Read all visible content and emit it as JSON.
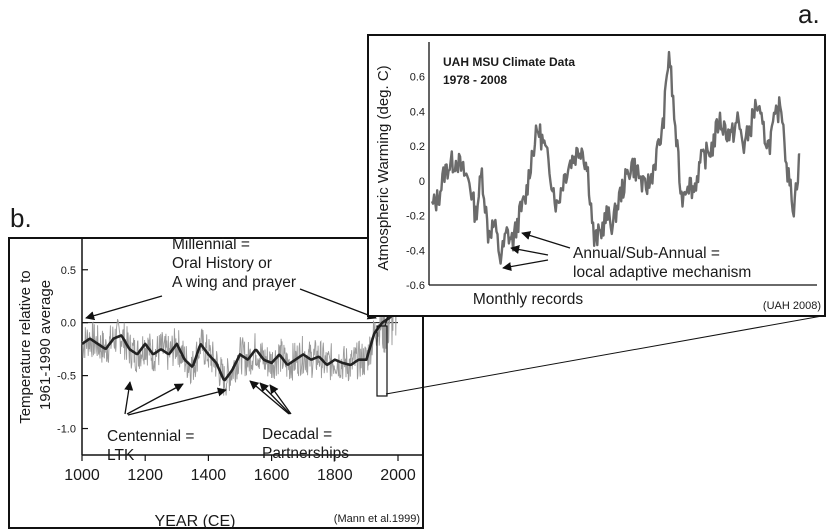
{
  "panel_a_letter": "a.",
  "panel_b_letter": "b.",
  "chart_data": [
    {
      "panel": "a",
      "type": "line",
      "title": "UAH MSU Climate Data",
      "subtitle": "1978 - 2008",
      "xlabel": "Monthly records",
      "ylabel": "Atmospheric Warming (deg. C)",
      "ylim": [
        -0.6,
        0.8
      ],
      "yticks": [
        "0.6",
        "0.4",
        "0.2",
        "0",
        "-0.2",
        "-0.4",
        "-0.6"
      ],
      "ytick_values": [
        0.6,
        0.4,
        0.2,
        0,
        -0.2,
        -0.4,
        -0.6
      ],
      "x": [
        1979.0,
        1979.5,
        1980.0,
        1980.5,
        1981.0,
        1981.5,
        1982.0,
        1982.5,
        1983.0,
        1983.5,
        1984.0,
        1984.5,
        1985.0,
        1985.5,
        1986.0,
        1986.5,
        1987.0,
        1987.5,
        1988.0,
        1988.5,
        1989.0,
        1989.5,
        1990.0,
        1990.5,
        1991.0,
        1991.5,
        1992.0,
        1992.5,
        1993.0,
        1993.5,
        1994.0,
        1994.5,
        1995.0,
        1995.5,
        1996.0,
        1996.5,
        1997.0,
        1997.5,
        1998.0,
        1998.5,
        1999.0,
        1999.5,
        2000.0,
        2000.5,
        2001.0,
        2001.5,
        2002.0,
        2002.5,
        2003.0,
        2003.5,
        2004.0,
        2004.5,
        2005.0,
        2005.5,
        2006.0,
        2006.5,
        2007.0,
        2007.5,
        2008.0,
        2008.5
      ],
      "values": [
        -0.15,
        -0.1,
        0.05,
        0.1,
        0.12,
        0.05,
        0.0,
        -0.2,
        0.05,
        -0.3,
        -0.25,
        -0.45,
        -0.3,
        -0.35,
        -0.2,
        -0.1,
        0.15,
        0.3,
        0.2,
        0.05,
        -0.15,
        0.0,
        0.1,
        0.15,
        0.2,
        0.05,
        -0.35,
        -0.3,
        -0.2,
        -0.25,
        -0.1,
        0.0,
        0.1,
        0.05,
        -0.05,
        0.0,
        0.15,
        0.3,
        0.75,
        0.3,
        -0.1,
        0.0,
        -0.05,
        0.1,
        0.15,
        0.2,
        0.35,
        0.3,
        0.25,
        0.35,
        0.2,
        0.3,
        0.45,
        0.3,
        0.2,
        0.35,
        0.45,
        0.05,
        -0.15,
        0.15
      ],
      "annotation": "Annual/Sub-Annual =\nlocal adaptive mechanism",
      "source": "(UAH 2008)",
      "grid": false
    },
    {
      "panel": "b",
      "type": "line",
      "xlabel": "YEAR (CE)",
      "ylabel": "Temperature relative to\n1961-1990 average",
      "xlim": [
        1000,
        2000
      ],
      "ylim": [
        -1.25,
        0.8
      ],
      "xticks": [
        "1000",
        "1200",
        "1400",
        "1600",
        "1800",
        "2000"
      ],
      "xtick_values": [
        1000,
        1200,
        1400,
        1600,
        1800,
        2000
      ],
      "yticks": [
        "0.5",
        "0.0",
        "-0.5",
        "-1.0"
      ],
      "ytick_values": [
        0.5,
        0.0,
        -0.5,
        -1.0
      ],
      "smoothed_x": [
        1000,
        1025,
        1050,
        1075,
        1100,
        1125,
        1150,
        1175,
        1200,
        1225,
        1250,
        1275,
        1300,
        1325,
        1350,
        1375,
        1400,
        1425,
        1450,
        1475,
        1500,
        1525,
        1550,
        1575,
        1600,
        1625,
        1650,
        1675,
        1700,
        1725,
        1750,
        1775,
        1800,
        1825,
        1850,
        1875,
        1900,
        1925,
        1950,
        1975,
        1990
      ],
      "smoothed_values": [
        -0.2,
        -0.15,
        -0.2,
        -0.25,
        -0.15,
        -0.12,
        -0.25,
        -0.3,
        -0.2,
        -0.3,
        -0.25,
        -0.3,
        -0.2,
        -0.35,
        -0.42,
        -0.2,
        -0.3,
        -0.38,
        -0.55,
        -0.45,
        -0.3,
        -0.35,
        -0.25,
        -0.35,
        -0.38,
        -0.3,
        -0.4,
        -0.35,
        -0.3,
        -0.35,
        -0.32,
        -0.4,
        -0.35,
        -0.38,
        -0.4,
        -0.35,
        -0.35,
        -0.1,
        0.0,
        0.05,
        0.1
      ],
      "annotations": [
        "Millennial =\nOral History or\nA wing and prayer",
        "Centennial =\nLTK",
        "Decadal =\nPartnerships"
      ],
      "source": "(Mann et al.1999)",
      "grid": false
    }
  ]
}
